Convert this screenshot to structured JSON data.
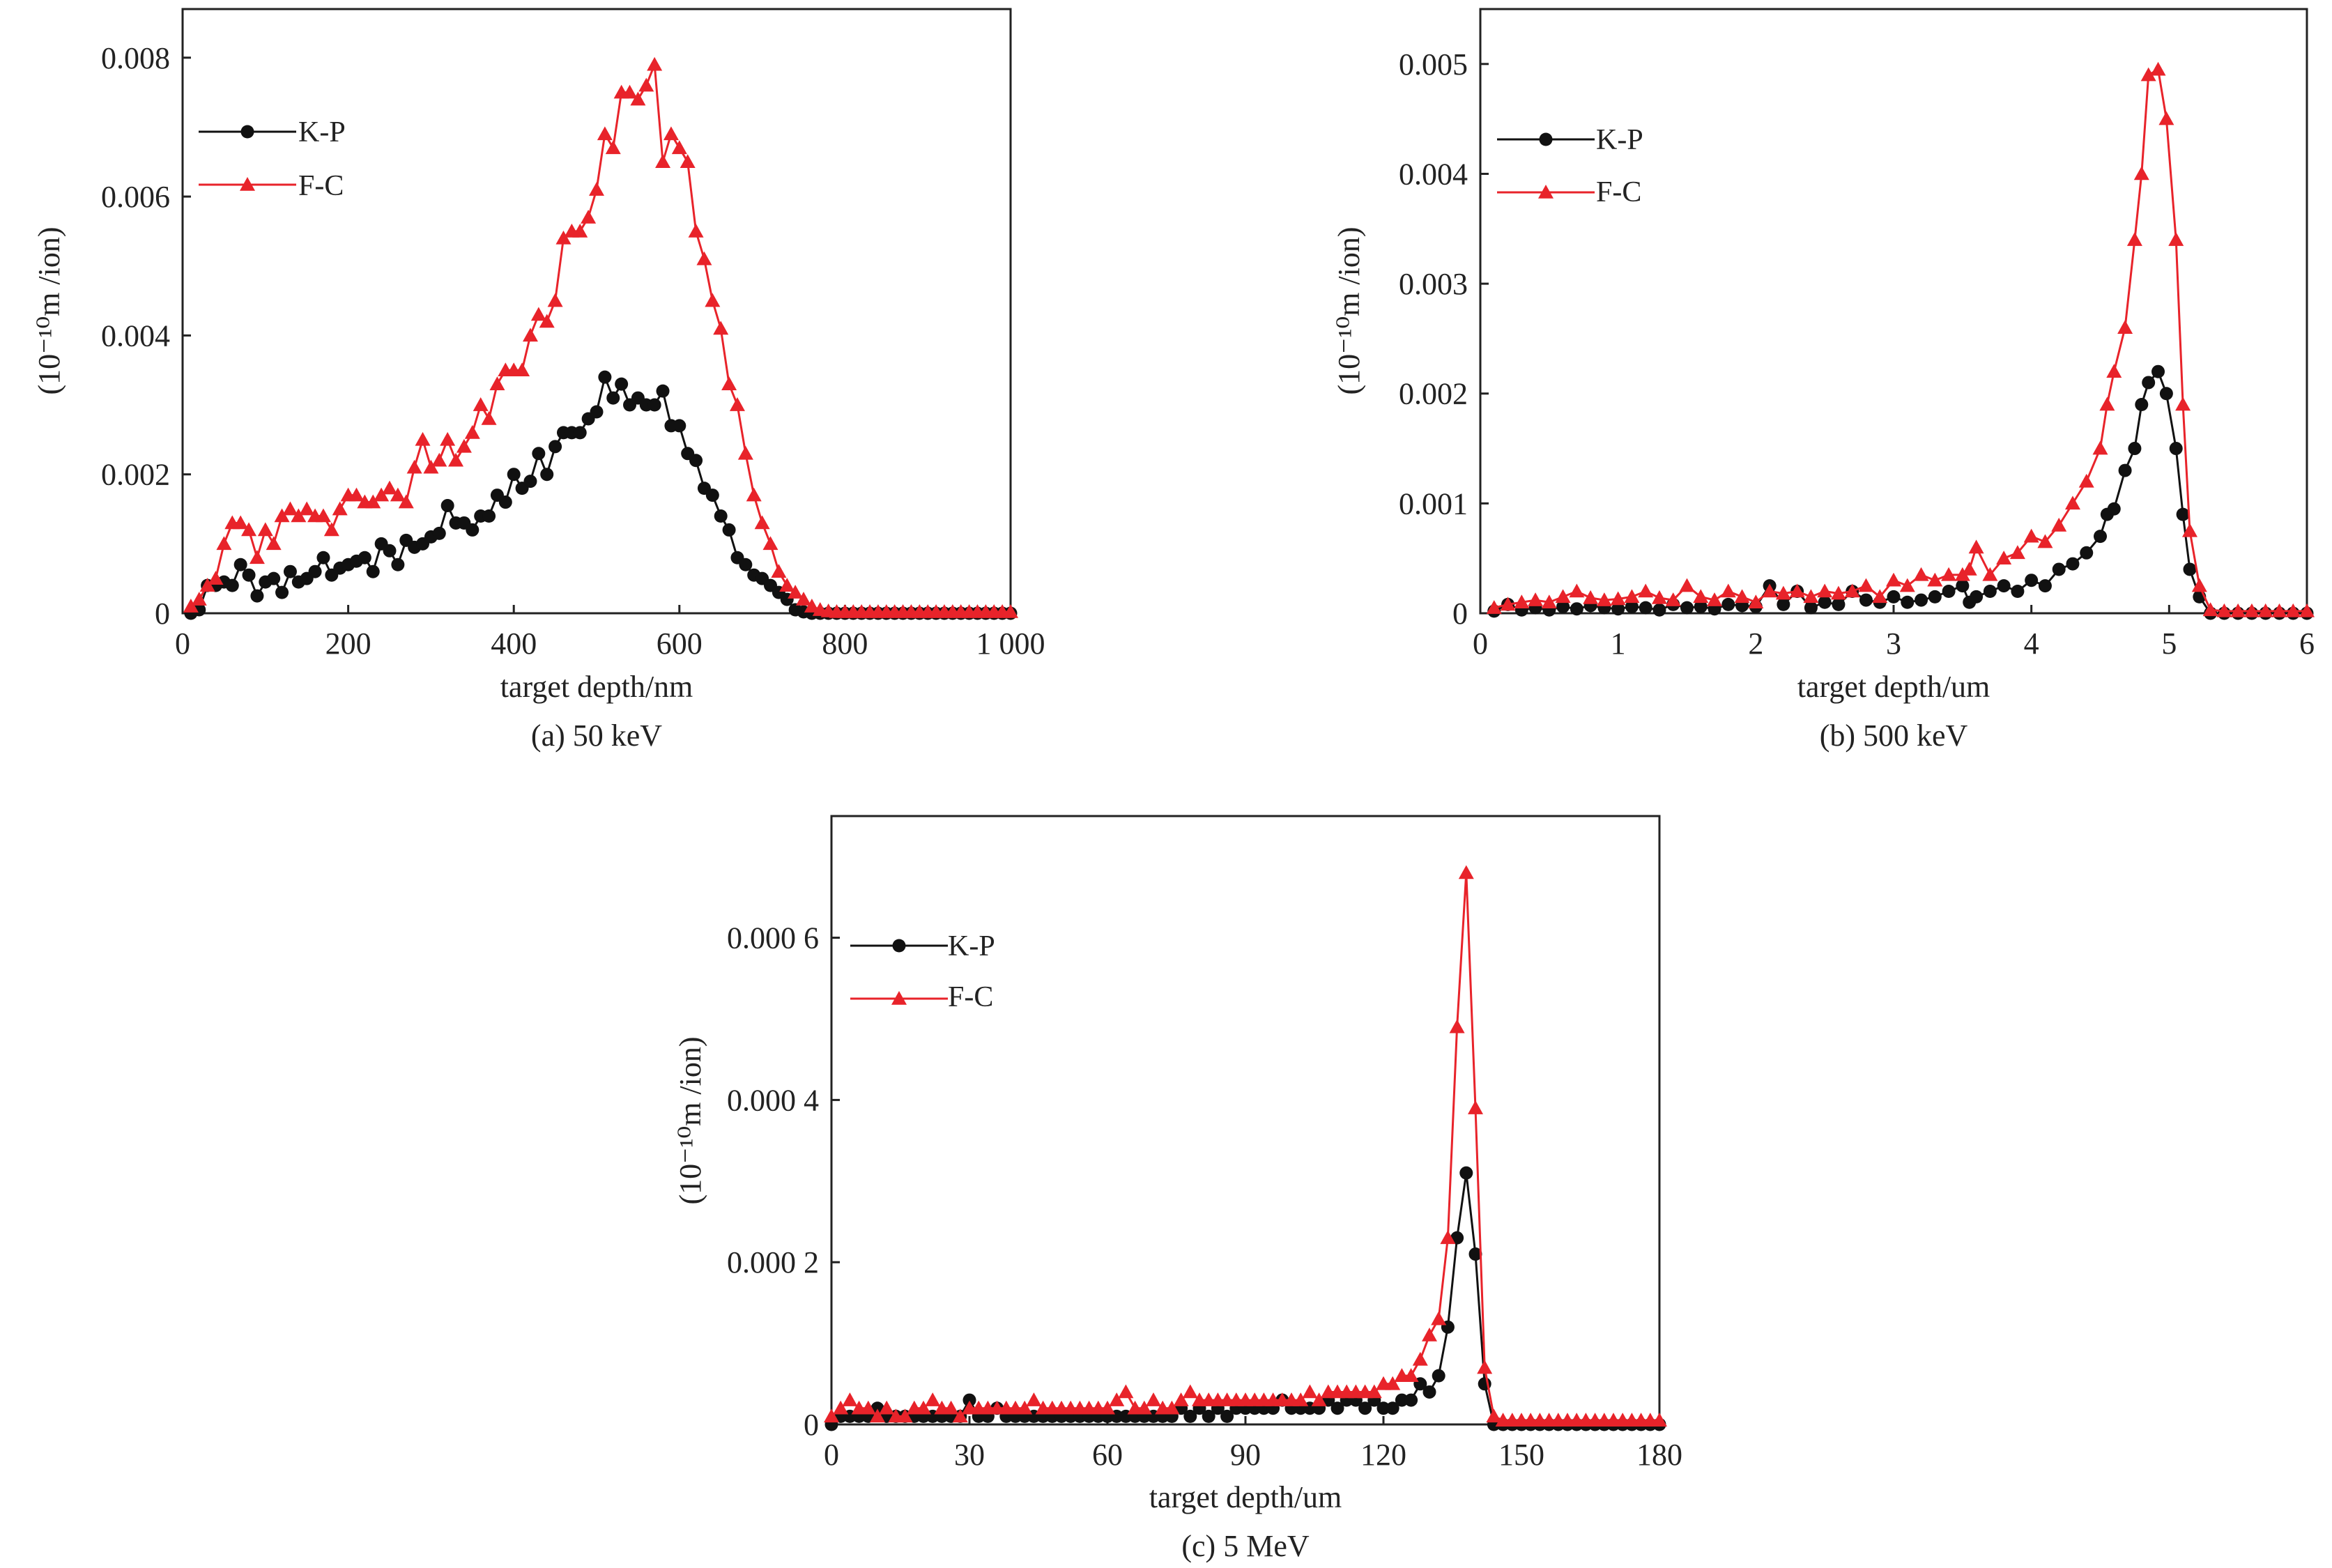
{
  "colors": {
    "kp": "#111111",
    "fc": "#e8232a",
    "axis": "#222222"
  },
  "chart_data": [
    {
      "type": "line",
      "caption": "(a) 50 keV",
      "xlabel": "target depth/nm",
      "ylabel": "(10⁻¹⁰m /ion)",
      "xlim": [
        0,
        1000
      ],
      "ylim": [
        0,
        0.0087
      ],
      "xticks": [
        0,
        200,
        400,
        600,
        800,
        1000
      ],
      "xtick_labels": [
        "0",
        "200",
        "400",
        "600",
        "800",
        "1 000"
      ],
      "yticks": [
        0,
        0.002,
        0.004,
        0.006,
        0.008
      ],
      "ytick_labels": [
        "0",
        "0.002",
        "0.004",
        "0.006",
        "0.008"
      ],
      "legend_placement": "top-left",
      "x_start": 10,
      "x_step": 10,
      "series": [
        {
          "name": "K-P",
          "marker": "circle",
          "values": [
            0,
            5e-05,
            0.0004,
            0.0004,
            0.00045,
            0.0004,
            0.0007,
            0.00055,
            0.00025,
            0.00045,
            0.0005,
            0.0003,
            0.0006,
            0.00045,
            0.0005,
            0.0006,
            0.0008,
            0.00055,
            0.00065,
            0.0007,
            0.00075,
            0.0008,
            0.0006,
            0.001,
            0.0009,
            0.0007,
            0.00105,
            0.00095,
            0.001,
            0.0011,
            0.00115,
            0.00155,
            0.0013,
            0.0013,
            0.0012,
            0.0014,
            0.0014,
            0.0017,
            0.0016,
            0.002,
            0.0018,
            0.0019,
            0.0023,
            0.002,
            0.0024,
            0.0026,
            0.0026,
            0.0026,
            0.0028,
            0.0029,
            0.0034,
            0.0031,
            0.0033,
            0.003,
            0.0031,
            0.003,
            0.003,
            0.0032,
            0.0027,
            0.0027,
            0.0023,
            0.0022,
            0.0018,
            0.0017,
            0.0014,
            0.0012,
            0.0008,
            0.0007,
            0.00055,
            0.0005,
            0.0004,
            0.0003,
            0.0002,
            5e-05,
            2e-05,
            0,
            0,
            0,
            0,
            0,
            0,
            0,
            0,
            0,
            0,
            0,
            0,
            0,
            0,
            0,
            0,
            0,
            0,
            0,
            0,
            0,
            0,
            0,
            0,
            0
          ]
        },
        {
          "name": "F-C",
          "marker": "triangle",
          "values": [
            0.0001,
            0.0002,
            0.0004,
            0.0005,
            0.001,
            0.0013,
            0.0013,
            0.0012,
            0.0008,
            0.0012,
            0.001,
            0.0014,
            0.0015,
            0.0014,
            0.0015,
            0.0014,
            0.0014,
            0.0012,
            0.0015,
            0.0017,
            0.0017,
            0.0016,
            0.0016,
            0.0017,
            0.0018,
            0.0017,
            0.0016,
            0.0021,
            0.0025,
            0.0021,
            0.0022,
            0.0025,
            0.0022,
            0.0024,
            0.0026,
            0.003,
            0.0028,
            0.0033,
            0.0035,
            0.0035,
            0.0035,
            0.004,
            0.0043,
            0.0042,
            0.0045,
            0.0054,
            0.0055,
            0.0055,
            0.0057,
            0.0061,
            0.0069,
            0.0067,
            0.0075,
            0.0075,
            0.0074,
            0.0076,
            0.0079,
            0.0065,
            0.0069,
            0.0067,
            0.0065,
            0.0055,
            0.0051,
            0.0045,
            0.0041,
            0.0033,
            0.003,
            0.0023,
            0.0017,
            0.0013,
            0.001,
            0.0006,
            0.0004,
            0.0003,
            0.0002,
            0.0001,
            5e-05,
            3e-05,
            2e-05,
            2e-05,
            2e-05,
            2e-05,
            2e-05,
            2e-05,
            2e-05,
            2e-05,
            2e-05,
            2e-05,
            2e-05,
            2e-05,
            2e-05,
            2e-05,
            2e-05,
            2e-05,
            2e-05,
            2e-05,
            2e-05,
            2e-05,
            2e-05,
            2e-05
          ]
        }
      ]
    },
    {
      "type": "line",
      "caption": "(b) 500 keV",
      "xlabel": "target depth/um",
      "ylabel": "(10⁻¹⁰m /ion)",
      "xlim": [
        0,
        6
      ],
      "ylim": [
        0,
        0.0055
      ],
      "xticks": [
        0,
        1,
        2,
        3,
        4,
        5,
        6
      ],
      "xtick_labels": [
        "0",
        "1",
        "2",
        "3",
        "4",
        "5",
        "6"
      ],
      "yticks": [
        0,
        0.001,
        0.002,
        0.003,
        0.004,
        0.005
      ],
      "ytick_labels": [
        "0",
        "0.001",
        "0.002",
        "0.003",
        "0.004",
        "0.005"
      ],
      "legend_placement": "top-left",
      "x": [
        0.1,
        0.2,
        0.3,
        0.4,
        0.5,
        0.6,
        0.7,
        0.8,
        0.9,
        1.0,
        1.1,
        1.2,
        1.3,
        1.4,
        1.5,
        1.6,
        1.7,
        1.8,
        1.9,
        2.0,
        2.1,
        2.2,
        2.3,
        2.4,
        2.5,
        2.6,
        2.7,
        2.8,
        2.9,
        3.0,
        3.1,
        3.2,
        3.3,
        3.4,
        3.5,
        3.55,
        3.6,
        3.7,
        3.8,
        3.9,
        4.0,
        4.1,
        4.2,
        4.3,
        4.4,
        4.5,
        4.55,
        4.6,
        4.68,
        4.75,
        4.8,
        4.85,
        4.92,
        4.98,
        5.05,
        5.1,
        5.15,
        5.22,
        5.3,
        5.4,
        5.5,
        5.6,
        5.7,
        5.8,
        5.9,
        6.0
      ],
      "series": [
        {
          "name": "K-P",
          "marker": "circle",
          "values": [
            2e-05,
            8e-05,
            3e-05,
            5e-05,
            3e-05,
            6e-05,
            4e-05,
            7e-05,
            5e-05,
            4e-05,
            6e-05,
            5e-05,
            3e-05,
            8e-05,
            5e-05,
            6e-05,
            4e-05,
            8e-05,
            7e-05,
            6e-05,
            0.00025,
            8e-05,
            0.0002,
            5e-05,
            0.0001,
            8e-05,
            0.0002,
            0.00012,
            0.0001,
            0.00015,
            0.0001,
            0.00012,
            0.00015,
            0.0002,
            0.00025,
            0.0001,
            0.00015,
            0.0002,
            0.00025,
            0.0002,
            0.0003,
            0.00025,
            0.0004,
            0.00045,
            0.00055,
            0.0007,
            0.0009,
            0.00095,
            0.0013,
            0.0015,
            0.0019,
            0.0021,
            0.0022,
            0.002,
            0.0015,
            0.0009,
            0.0004,
            0.00015,
            0,
            0,
            0,
            0,
            0,
            0,
            0,
            0
          ]
        },
        {
          "name": "F-C",
          "marker": "triangle",
          "values": [
            5e-05,
            8e-05,
            0.0001,
            0.00012,
            0.0001,
            0.00015,
            0.0002,
            0.00014,
            0.00012,
            0.00013,
            0.00015,
            0.0002,
            0.00014,
            0.00012,
            0.00025,
            0.00015,
            0.00012,
            0.0002,
            0.00015,
            0.0001,
            0.0002,
            0.00018,
            0.0002,
            0.00015,
            0.0002,
            0.00018,
            0.0002,
            0.00025,
            0.00015,
            0.0003,
            0.00025,
            0.00035,
            0.0003,
            0.00035,
            0.00035,
            0.0004,
            0.0006,
            0.00035,
            0.0005,
            0.00055,
            0.0007,
            0.00065,
            0.0008,
            0.001,
            0.0012,
            0.0015,
            0.0019,
            0.0022,
            0.0026,
            0.0034,
            0.004,
            0.0049,
            0.00495,
            0.0045,
            0.0034,
            0.0019,
            0.00075,
            0.00025,
            3e-05,
            2e-05,
            2e-05,
            2e-05,
            2e-05,
            2e-05,
            2e-05,
            2e-05
          ]
        }
      ]
    },
    {
      "type": "line",
      "caption": "(c) 5 MeV",
      "xlabel": "target depth/um",
      "ylabel": "(10⁻¹⁰m /ion)",
      "xlim": [
        0,
        180
      ],
      "ylim": [
        0,
        0.00075
      ],
      "xticks": [
        0,
        30,
        60,
        90,
        120,
        150,
        180
      ],
      "xtick_labels": [
        "0",
        "30",
        "60",
        "90",
        "120",
        "150",
        "180"
      ],
      "yticks": [
        0,
        0.0002,
        0.0004,
        0.0006
      ],
      "ytick_labels": [
        "0",
        "0.000 2",
        "0.000 4",
        "0.000 6"
      ],
      "legend_placement": "top-left",
      "x_start": 0,
      "x_step": 2,
      "series": [
        {
          "name": "K-P",
          "marker": "circle",
          "values": [
            0,
            1e-05,
            1e-05,
            1e-05,
            1e-05,
            2e-05,
            1e-05,
            1e-05,
            1e-05,
            1e-05,
            1e-05,
            1e-05,
            1e-05,
            1e-05,
            1e-05,
            3e-05,
            1e-05,
            1e-05,
            2e-05,
            1e-05,
            1e-05,
            1e-05,
            1e-05,
            1e-05,
            1e-05,
            1e-05,
            1e-05,
            1e-05,
            1e-05,
            1e-05,
            1e-05,
            1e-05,
            1e-05,
            1e-05,
            1e-05,
            1e-05,
            1e-05,
            1e-05,
            2e-05,
            1e-05,
            2e-05,
            1e-05,
            2e-05,
            1e-05,
            2e-05,
            2e-05,
            2e-05,
            2e-05,
            2e-05,
            3e-05,
            2e-05,
            2e-05,
            2e-05,
            2e-05,
            3e-05,
            2e-05,
            3e-05,
            3e-05,
            2e-05,
            3e-05,
            2e-05,
            2e-05,
            3e-05,
            3e-05,
            5e-05,
            4e-05,
            6e-05,
            0.00012,
            0.00023,
            0.00031,
            0.00021,
            5e-05,
            0,
            0,
            0,
            0,
            0,
            0,
            0,
            0,
            0,
            0,
            0,
            0,
            0,
            0,
            0,
            0,
            0,
            0,
            0
          ]
        },
        {
          "name": "F-C",
          "marker": "triangle",
          "values": [
            1e-05,
            2e-05,
            3e-05,
            2e-05,
            2e-05,
            1e-05,
            2e-05,
            1e-05,
            1e-05,
            2e-05,
            2e-05,
            3e-05,
            2e-05,
            2e-05,
            1e-05,
            2e-05,
            2e-05,
            2e-05,
            2e-05,
            2e-05,
            2e-05,
            2e-05,
            3e-05,
            2e-05,
            2e-05,
            2e-05,
            2e-05,
            2e-05,
            2e-05,
            2e-05,
            2e-05,
            3e-05,
            4e-05,
            2e-05,
            2e-05,
            3e-05,
            2e-05,
            2e-05,
            3e-05,
            4e-05,
            3e-05,
            3e-05,
            3e-05,
            3e-05,
            3e-05,
            3e-05,
            3e-05,
            3e-05,
            3e-05,
            3e-05,
            3e-05,
            3e-05,
            4e-05,
            3e-05,
            4e-05,
            4e-05,
            4e-05,
            4e-05,
            4e-05,
            4e-05,
            5e-05,
            5e-05,
            6e-05,
            6e-05,
            8e-05,
            0.00011,
            0.00013,
            0.00023,
            0.00049,
            0.00068,
            0.00039,
            7e-05,
            1e-05,
            5e-06,
            5e-06,
            5e-06,
            5e-06,
            5e-06,
            5e-06,
            5e-06,
            5e-06,
            5e-06,
            5e-06,
            5e-06,
            5e-06,
            5e-06,
            5e-06,
            5e-06,
            5e-06,
            5e-06,
            5e-06
          ]
        }
      ]
    }
  ]
}
